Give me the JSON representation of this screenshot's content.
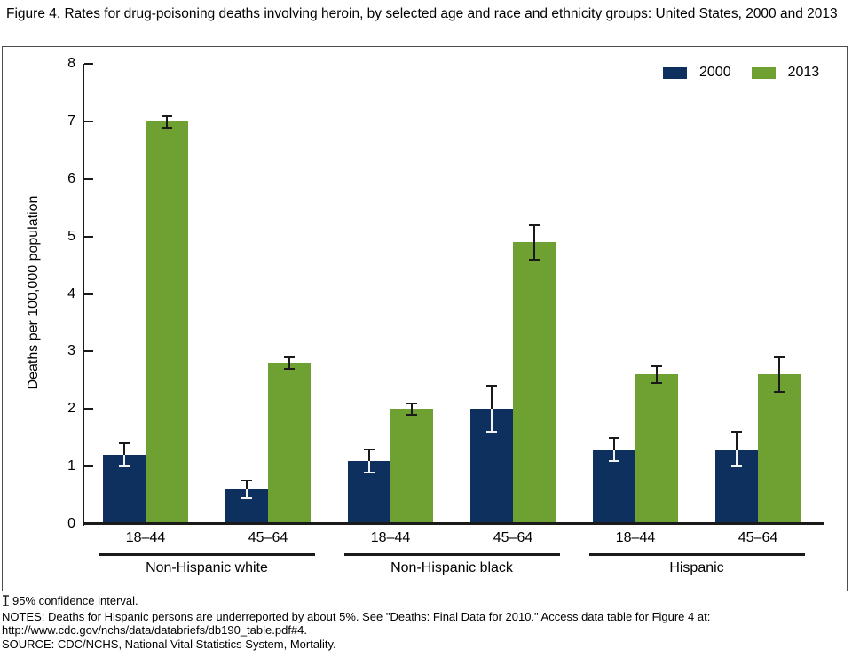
{
  "title": "Figure 4. Rates for drug-poisoning deaths involving heroin, by selected age and race and ethnicity groups: United States, 2000 and 2013",
  "footer": {
    "ci_note": "95% confidence interval.",
    "notes": "NOTES: Deaths for Hispanic persons are underreported by about 5%. See \"Deaths: Final Data for 2010.\" Access data table for Figure 4 at: http://www.cdc.gov/nchs/data/databriefs/db190_table.pdf#4.",
    "source": "SOURCE: CDC/NCHS, National Vital Statistics System, Mortality."
  },
  "chart_data": {
    "type": "bar",
    "title": "Figure 4. Rates for drug-poisoning deaths involving heroin, by selected age and race and ethnicity groups: United States, 2000 and 2013",
    "xlabel": "",
    "ylabel": "Deaths per 100,000 population",
    "ylim": [
      0,
      8
    ],
    "yticks": [
      0,
      1,
      2,
      3,
      4,
      5,
      6,
      7,
      8
    ],
    "grid": false,
    "legend_position": "top-right",
    "error_bars": "95% confidence interval",
    "group_labels": [
      "Non-Hispanic white",
      "Non-Hispanic black",
      "Hispanic"
    ],
    "categories": [
      "18–44",
      "45–64",
      "18–44",
      "45–64",
      "18–44",
      "45–64"
    ],
    "series": [
      {
        "name": "2000",
        "color": "#0e305f",
        "values": [
          1.2,
          0.6,
          1.1,
          2.0,
          1.3,
          1.3
        ],
        "ci": [
          0.2,
          0.15,
          0.2,
          0.4,
          0.2,
          0.3
        ]
      },
      {
        "name": "2013",
        "color": "#6ea032",
        "values": [
          7.0,
          2.8,
          2.0,
          4.9,
          2.6,
          2.6
        ],
        "ci": [
          0.1,
          0.1,
          0.1,
          0.3,
          0.15,
          0.3
        ]
      }
    ]
  }
}
